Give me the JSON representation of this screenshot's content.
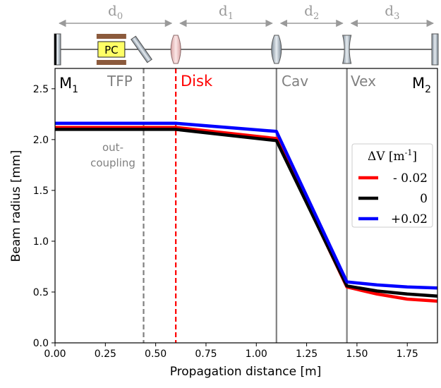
{
  "chart_data": {
    "type": "line",
    "xlabel": "Propagation distance [m]",
    "ylabel": "Beam radius [mm]",
    "xlim": [
      0,
      1.9
    ],
    "ylim": [
      0,
      2.7
    ],
    "x_ticks": [
      0.0,
      0.25,
      0.5,
      0.75,
      1.0,
      1.25,
      1.5,
      1.75
    ],
    "x_tick_labels": [
      "0.00",
      "0.25",
      "0.50",
      "0.75",
      "1.00",
      "1.25",
      "1.50",
      "1.75"
    ],
    "y_ticks": [
      0.0,
      0.5,
      1.0,
      1.5,
      2.0,
      2.5
    ],
    "y_tick_labels": [
      "0.0",
      "0.5",
      "1.0",
      "1.5",
      "2.0",
      "2.5"
    ],
    "grid": false,
    "legend": {
      "title_main": "ΔV [m",
      "title_sup": "-1",
      "title_end": "]",
      "position": "right"
    },
    "series": [
      {
        "name": "- 0.02",
        "color": "#ff0000",
        "x": [
          0.0,
          0.6,
          1.1,
          1.45,
          1.6,
          1.75,
          1.9
        ],
        "y": [
          2.12,
          2.12,
          2.01,
          0.55,
          0.48,
          0.43,
          0.41
        ]
      },
      {
        "name": "0",
        "color": "#000000",
        "x": [
          0.0,
          0.6,
          1.1,
          1.45,
          1.6,
          1.75,
          1.9
        ],
        "y": [
          2.1,
          2.1,
          1.99,
          0.56,
          0.51,
          0.48,
          0.46
        ]
      },
      {
        "name": "+0.02",
        "color": "#0000ff",
        "x": [
          0.0,
          0.6,
          1.1,
          1.45,
          1.6,
          1.75,
          1.9
        ],
        "y": [
          2.16,
          2.16,
          2.08,
          0.6,
          0.57,
          0.55,
          0.54
        ]
      }
    ],
    "vlines": [
      {
        "name": "tfp-line",
        "x": 0.44,
        "style": "dashed",
        "color": "#808080"
      },
      {
        "name": "disk-line",
        "x": 0.6,
        "style": "dashed",
        "color": "#ff0000"
      },
      {
        "name": "cav-line",
        "x": 1.1,
        "style": "solid",
        "color": "#808080"
      },
      {
        "name": "vex-line",
        "x": 1.45,
        "style": "solid",
        "color": "#808080"
      }
    ],
    "region_labels": {
      "m1_main": "M",
      "m1_sub": "1",
      "tfp": "TFP",
      "disk": "Disk",
      "cav": "Cav",
      "vex": "Vex",
      "m2_main": "M",
      "m2_sub": "2"
    },
    "annotation": {
      "line1": "out-",
      "line2": "coupling"
    },
    "colors": {
      "tfp": "#808080",
      "disk": "#ff0000",
      "cav": "#808080",
      "vex": "#808080",
      "optics": "#9a9a9a"
    }
  },
  "schematic": {
    "distances": [
      {
        "main": "d",
        "sub": "0",
        "x_from": 0.0,
        "x_to": 0.6
      },
      {
        "main": "d",
        "sub": "1",
        "x_from": 0.6,
        "x_to": 1.1
      },
      {
        "main": "d",
        "sub": "2",
        "x_from": 1.1,
        "x_to": 1.45
      },
      {
        "main": "d",
        "sub": "3",
        "x_from": 1.45,
        "x_to": 1.9
      }
    ],
    "pc_label": "PC",
    "pc_fill": "#ffff66",
    "pc_plate": "#8b5a3c"
  }
}
